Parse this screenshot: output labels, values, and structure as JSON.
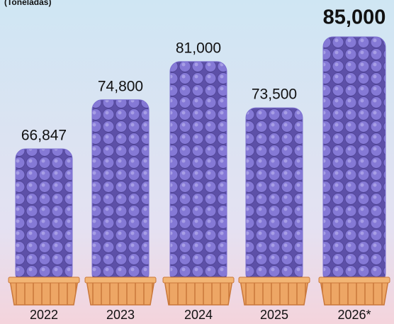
{
  "chart_data": {
    "type": "bar",
    "subtitle": "(Toneladas)",
    "categories": [
      "2022",
      "2023",
      "2024",
      "2025",
      "2026*"
    ],
    "values": [
      66847,
      74800,
      81000,
      73500,
      85000
    ],
    "value_labels": [
      "66,847",
      "74,800",
      "81,000",
      "73,500",
      "85,000"
    ],
    "color": "#7b6fd0"
  }
}
